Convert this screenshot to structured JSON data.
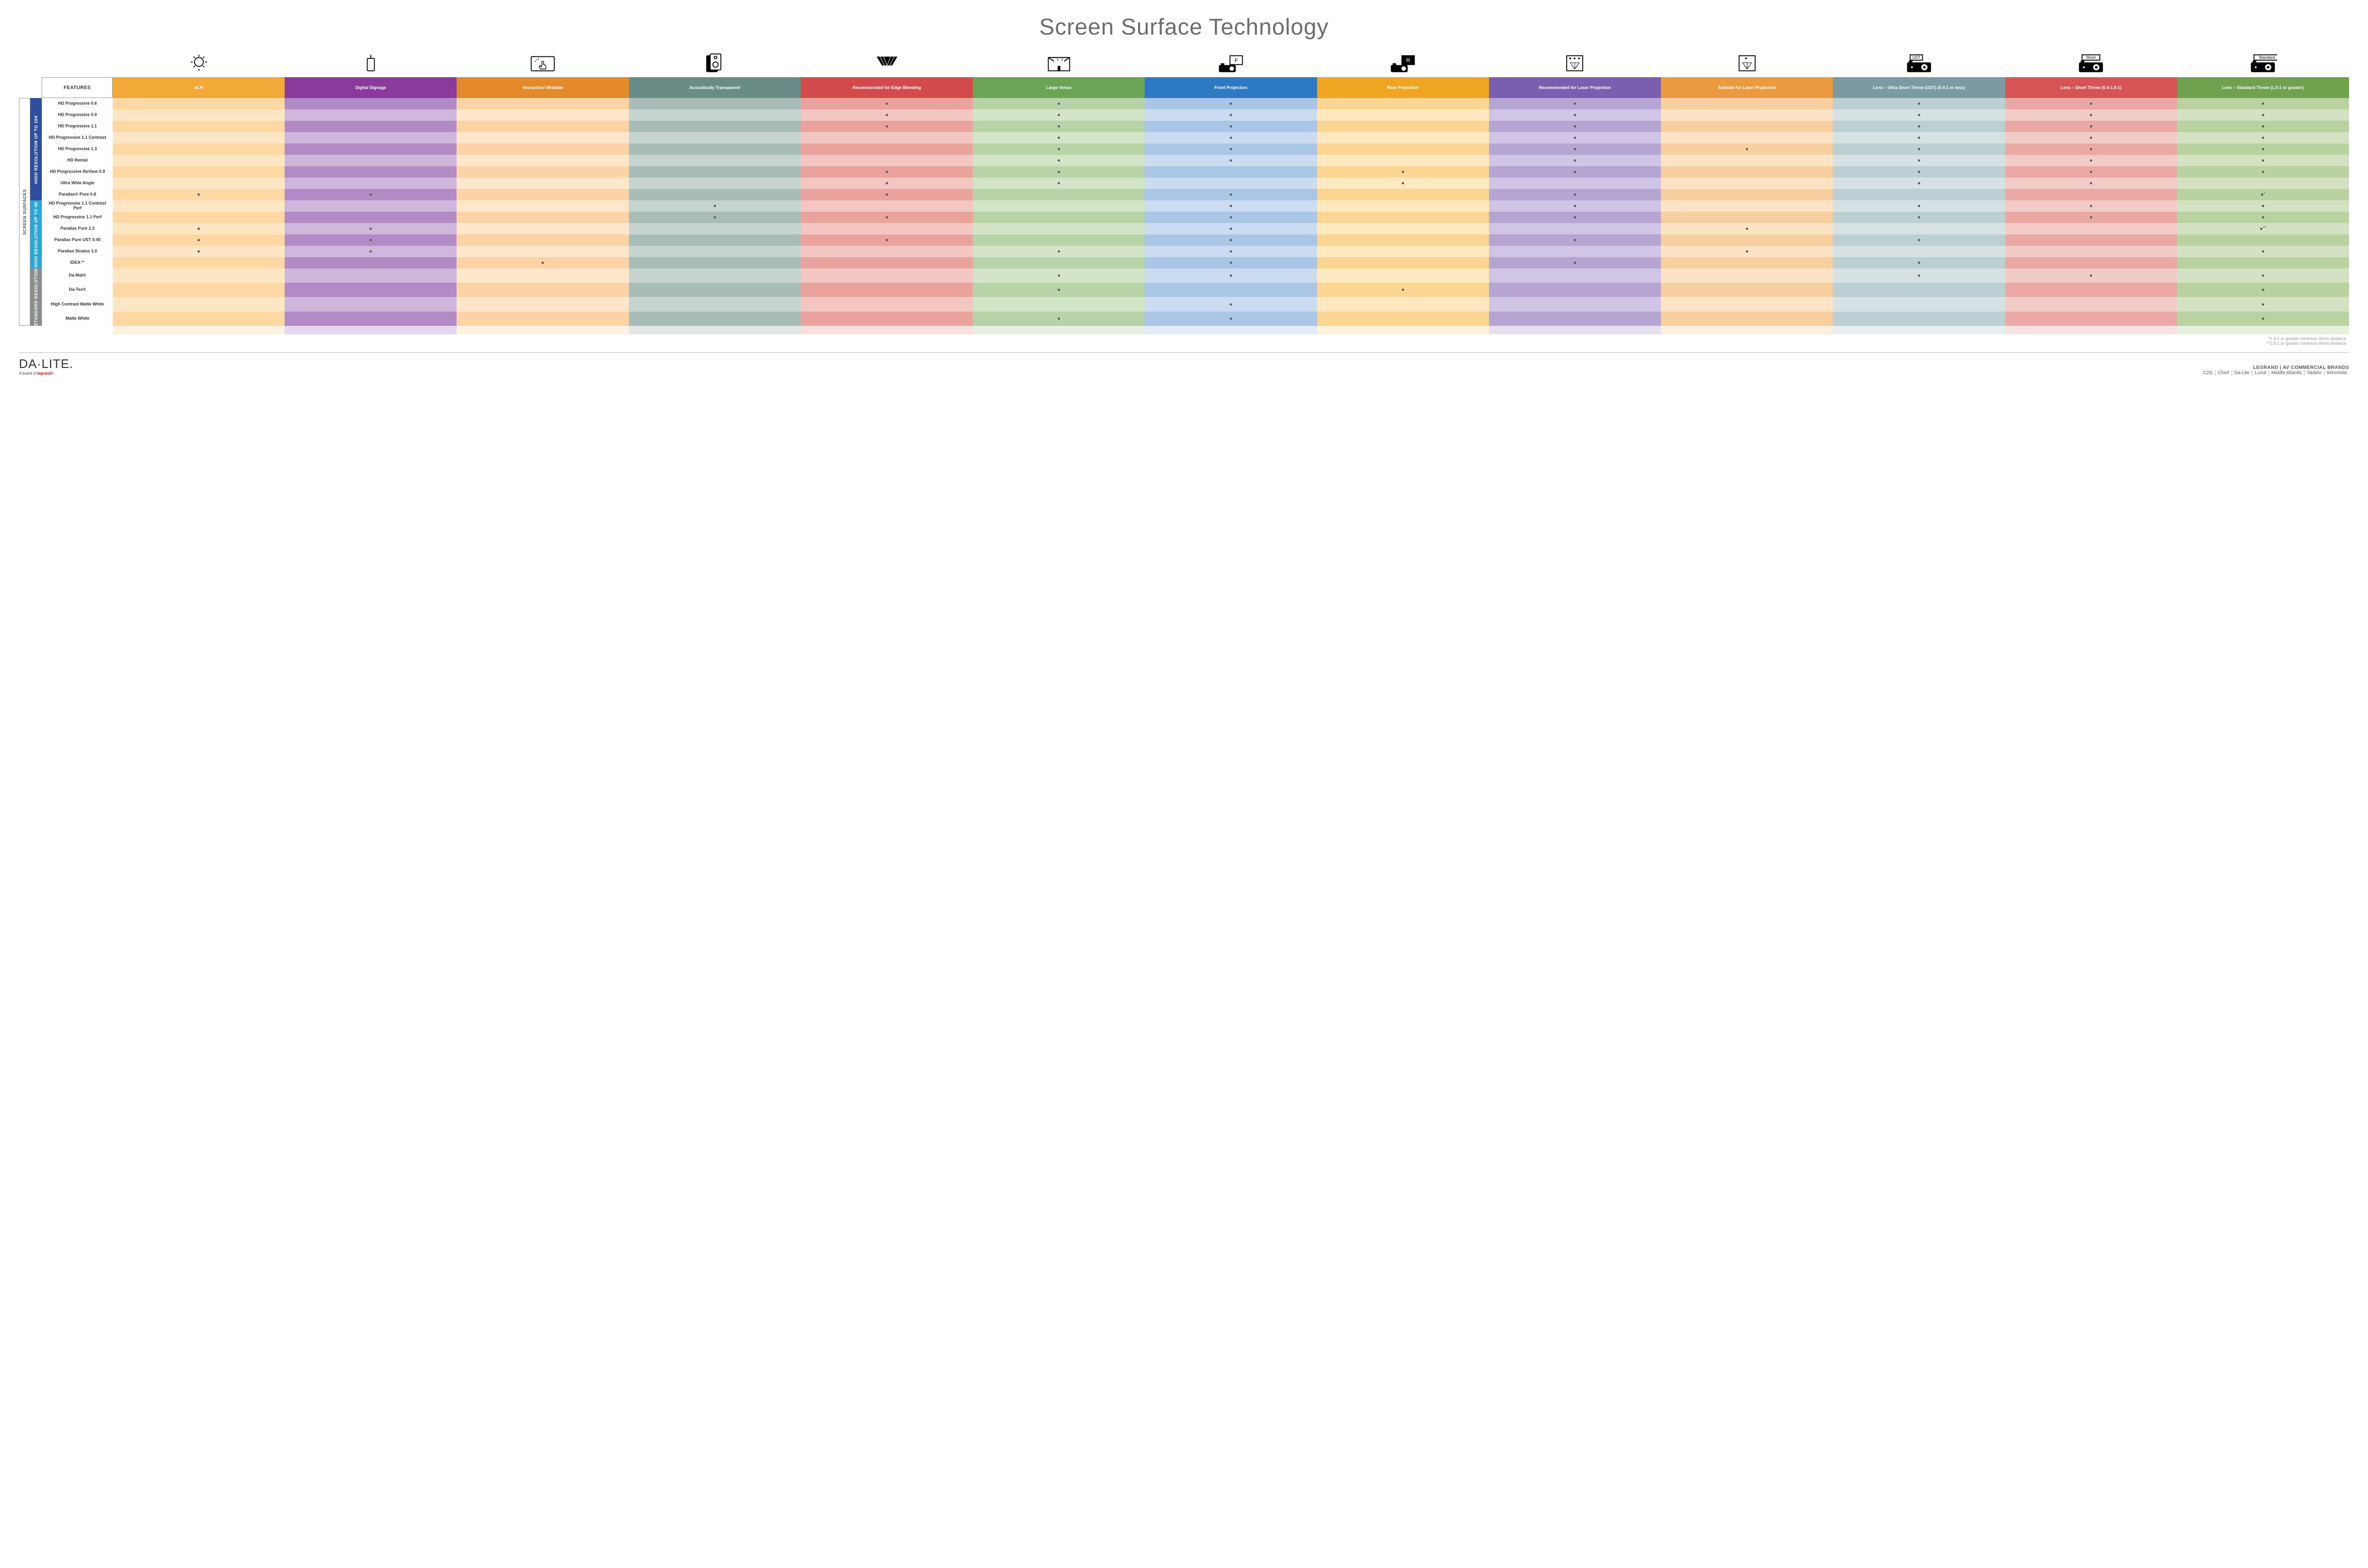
{
  "title": "Screen Surface Technology",
  "features_header": "FEATURES",
  "outer_category": "SCREEN SURFACES",
  "categories": [
    {
      "label": "HIGH RESOLUTION UP TO 16K",
      "color": "#2d4e9b",
      "rows": 9
    },
    {
      "label": "HIGH RESOLUTION UP TO 4K",
      "color": "#2aa7d4",
      "rows": 6
    },
    {
      "label": "STANDARD RESOLUTION",
      "color": "#8a8d90",
      "rows": 4
    }
  ],
  "columns": [
    {
      "label": "ALR",
      "hdr": "#f3a938",
      "even": "#fcd9a2",
      "odd": "#fbe7c4"
    },
    {
      "label": "Digital Signage",
      "hdr": "#8a3a9a",
      "even": "#b28bc4",
      "odd": "#cfb6da"
    },
    {
      "label": "Interactive/ Writable",
      "hdr": "#e58a2a",
      "even": "#fbd3a5",
      "odd": "#fde6c9"
    },
    {
      "label": "Acoustically Transparent",
      "hdr": "#6b8b87",
      "even": "#a9bcb8",
      "odd": "#c6d3d0"
    },
    {
      "label": "Recommended for Edge Blending",
      "hdr": "#d24a4a",
      "even": "#eaa39c",
      "odd": "#f3c7c1"
    },
    {
      "label": "Large Venue",
      "hdr": "#6aa556",
      "even": "#b9d3a8",
      "odd": "#d4e4c7"
    },
    {
      "label": "Front Projection",
      "hdr": "#2e79c4",
      "even": "#aac6e6",
      "odd": "#cbdcf1"
    },
    {
      "label": "Rear Projection",
      "hdr": "#f0a522",
      "even": "#fbd693",
      "odd": "#fde8bf"
    },
    {
      "label": "Recommended for Laser Projection",
      "hdr": "#7a5fb0",
      "even": "#b5a5d2",
      "odd": "#d0c5e4"
    },
    {
      "label": "Suitable for Laser Projection",
      "hdr": "#eb9a3e",
      "even": "#f8cf9f",
      "odd": "#fbe3c4"
    },
    {
      "label": "Lens – Ultra Short Throw (UST) (0.4:1 or less)",
      "hdr": "#7c9aa1",
      "even": "#bccfd2",
      "odd": "#d6e1e3"
    },
    {
      "label": "Lens – Short Throw (0.4-1.0:1)",
      "hdr": "#d65454",
      "even": "#eaa8a2",
      "odd": "#f3cbc6"
    },
    {
      "label": "Lens – Standard Throw (1.0:1 or greater)",
      "hdr": "#6fa14e",
      "even": "#b9d2a0",
      "odd": "#d3e3c1"
    }
  ],
  "rows": [
    {
      "name": "HD Progressive 0.6",
      "dots": [
        "",
        "",
        "",
        "",
        "x",
        "x",
        "x",
        "",
        "x",
        "",
        "x",
        "x",
        "x"
      ]
    },
    {
      "name": "HD Progressive 0.9",
      "dots": [
        "",
        "",
        "",
        "",
        "x",
        "x",
        "x",
        "",
        "x",
        "",
        "x",
        "x",
        "x"
      ]
    },
    {
      "name": "HD Progressive 1.1",
      "dots": [
        "",
        "",
        "",
        "",
        "x",
        "x",
        "x",
        "",
        "x",
        "",
        "x",
        "x",
        "x"
      ]
    },
    {
      "name": "HD Progressive 1.1 Contrast",
      "dots": [
        "",
        "",
        "",
        "",
        "",
        "x",
        "x",
        "",
        "x",
        "",
        "x",
        "x",
        "x"
      ]
    },
    {
      "name": "HD Progressive 1.3",
      "dots": [
        "",
        "",
        "",
        "",
        "",
        "x",
        "x",
        "",
        "x",
        "x",
        "x",
        "x",
        "x"
      ]
    },
    {
      "name": "HD Rental",
      "dots": [
        "",
        "",
        "",
        "",
        "",
        "x",
        "x",
        "",
        "x",
        "",
        "x",
        "x",
        "x"
      ]
    },
    {
      "name": "HD Progressive ReView 0.9",
      "dots": [
        "",
        "",
        "",
        "",
        "x",
        "x",
        "",
        "x",
        "x",
        "",
        "x",
        "x",
        "x"
      ]
    },
    {
      "name": "Ultra Wide Angle",
      "dots": [
        "",
        "",
        "",
        "",
        "x",
        "x",
        "",
        "x",
        "",
        "",
        "x",
        "x",
        ""
      ]
    },
    {
      "name": "Parallax® Pure 0.8",
      "dots": [
        "x",
        "x",
        "",
        "",
        "x",
        "",
        "x",
        "",
        "x",
        "",
        "",
        "",
        "s1"
      ]
    },
    {
      "name": "HD Progressive 1.1 Contrast Perf",
      "dots": [
        "",
        "",
        "",
        "x",
        "",
        "",
        "x",
        "",
        "x",
        "",
        "x",
        "x",
        "x"
      ]
    },
    {
      "name": "HD Progressive 1.1 Perf",
      "dots": [
        "",
        "",
        "",
        "x",
        "x",
        "",
        "x",
        "",
        "x",
        "",
        "x",
        "x",
        "x"
      ]
    },
    {
      "name": "Parallax Pure 2.3",
      "dots": [
        "x",
        "x",
        "",
        "",
        "",
        "",
        "x",
        "",
        "",
        "x",
        "",
        "",
        "s2"
      ]
    },
    {
      "name": "Parallax Pure UST 0.45",
      "dots": [
        "x",
        "x",
        "",
        "",
        "x",
        "",
        "x",
        "",
        "x",
        "",
        "x",
        "",
        ""
      ]
    },
    {
      "name": "Parallax Stratos 1.0",
      "dots": [
        "x",
        "x",
        "",
        "",
        "",
        "x",
        "x",
        "",
        "",
        "x",
        "",
        "",
        "x"
      ]
    },
    {
      "name": "IDEA™",
      "dots": [
        "",
        "",
        "x",
        "",
        "",
        "",
        "x",
        "",
        "x",
        "",
        "x",
        "",
        ""
      ]
    },
    {
      "name": "Da-Mat®",
      "dots": [
        "",
        "",
        "",
        "",
        "",
        "x",
        "x",
        "",
        "",
        "",
        "x",
        "x",
        "x"
      ]
    },
    {
      "name": "Da-Tex®",
      "dots": [
        "",
        "",
        "",
        "",
        "",
        "x",
        "",
        "x",
        "",
        "",
        "",
        "",
        "x"
      ]
    },
    {
      "name": "High Contrast Matte White",
      "dots": [
        "",
        "",
        "",
        "",
        "",
        "",
        "x",
        "",
        "",
        "",
        "",
        "",
        "x"
      ]
    },
    {
      "name": "Matte White",
      "dots": [
        "",
        "",
        "",
        "",
        "",
        "x",
        "x",
        "",
        "",
        "",
        "",
        "",
        "x"
      ]
    }
  ],
  "icons": [
    "bulb",
    "remote",
    "touch",
    "speaker",
    "blend",
    "venue",
    "front",
    "rear",
    "laser-rec",
    "laser-ok",
    "ust",
    "short",
    "standard"
  ],
  "lens_labels": {
    "ust": "UST",
    "short": "Short",
    "standard": "Standard"
  },
  "footnotes": [
    "*1.5:1 or greater minimum throw distance",
    "**1.8:1 or greater minimum throw distance"
  ],
  "footer": {
    "logo": "DA·LITE.",
    "logo_sub_pre": "A brand of ",
    "logo_sub_brand": "legrand",
    "right_title": "LEGRAND | AV COMMERCIAL BRANDS",
    "brands": [
      "C2G",
      "Chief",
      "Da-Lite",
      "Luxul",
      "Middle Atlantic",
      "Vaddio",
      "Wiremold"
    ]
  }
}
